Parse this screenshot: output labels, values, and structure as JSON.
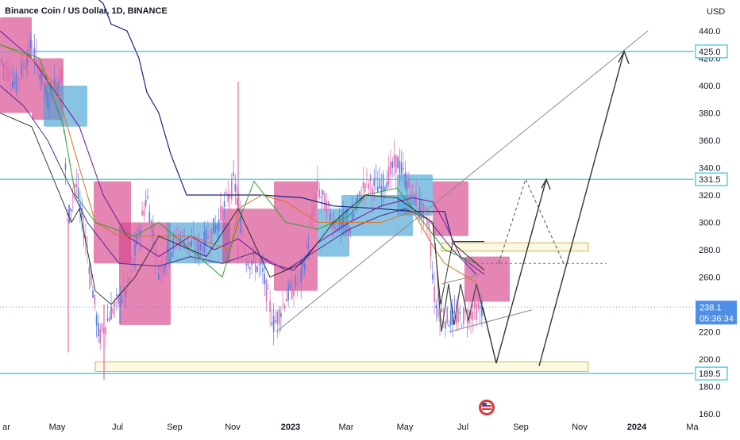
{
  "header": {
    "symbol_title": "Binance Coin / US Dollar, 1D, BINANCE",
    "currency": "USD"
  },
  "chart_data": {
    "type": "candlestick",
    "title": "Binance Coin / US Dollar, 1D, BINANCE",
    "ylim": [
      160,
      450
    ],
    "y_ticks": [
      160,
      180,
      200,
      220,
      240,
      260,
      280,
      300,
      320,
      340,
      360,
      380,
      400,
      420,
      440
    ],
    "y_tick_labels": [
      "160.0",
      "180.0",
      "200.0",
      "220.0",
      "240.0",
      "260.0",
      "280.0",
      "300.0",
      "320.0",
      "340.0",
      "360.0",
      "380.0",
      "400.0",
      "420.0",
      "440.0"
    ],
    "x_tick_labels": [
      "ar",
      "May",
      "Jul",
      "Sep",
      "Nov",
      "2023",
      "Mar",
      "May",
      "Jul",
      "Sep",
      "Nov",
      "2024",
      "Ma"
    ],
    "bold_x_labels": [
      "2023",
      "2024"
    ],
    "horizontal_levels": [
      {
        "value": 425.0,
        "label": "425.0"
      },
      {
        "value": 331.5,
        "label": "331.5"
      },
      {
        "value": 189.5,
        "label": "189.5"
      }
    ],
    "last_price": {
      "value": 238.1,
      "label": "238.1",
      "countdown": "05:36:34"
    },
    "zones": [
      {
        "from": 279.0,
        "to": 285.0,
        "start": "2023-06",
        "end": "2023-10",
        "color": "#fdf8e1"
      },
      {
        "from": 191.0,
        "to": 198.0,
        "start": "2022-06",
        "end": "2023-10",
        "color": "#fdf8e1"
      }
    ],
    "projection": {
      "solid_path": [
        {
          "date": "2023-08",
          "value": 197
        },
        {
          "date": "2023-09",
          "value": 331.5
        },
        {
          "date": "2023-09",
          "value": 195
        },
        {
          "date": "2023-11",
          "value": 425.0
        }
      ],
      "dashed_path": [
        {
          "date": "2023-07",
          "value": 270
        },
        {
          "date": "2023-09",
          "value": 331.5
        },
        {
          "date": "2023-10",
          "value": 270
        }
      ]
    },
    "trendlines": [
      {
        "from": {
          "date": "2022-12",
          "value": 220
        },
        "to": {
          "date": "2023-12",
          "value": 440
        }
      },
      {
        "from": {
          "date": "2023-06",
          "value": 220
        },
        "to": {
          "date": "2023-08",
          "value": 236
        }
      }
    ],
    "colors": {
      "up": "#5b7be0",
      "down": "#e06ab0",
      "level_line": "#26c6da",
      "cloud_bull": "#4aa3d6",
      "cloud_bear": "#d6448c",
      "ma_navy": "#1a237e",
      "ma_purple": "#7b1fa2",
      "ma_green": "#2e9e2e",
      "ma_orange": "#e07020",
      "ma_black": "#222222",
      "price_badge": "#4f8ee6"
    }
  }
}
